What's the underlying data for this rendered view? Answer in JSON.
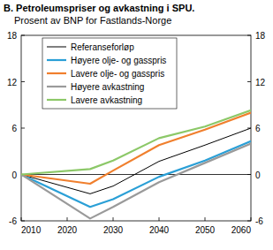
{
  "chart_data": {
    "type": "line",
    "title": "B.  Petroleumspriser og avkastning i SPU.",
    "subtitle": "Prosent av BNP for Fastlands-Norge",
    "x": [
      2010,
      2025,
      2030,
      2040,
      2050,
      2060
    ],
    "series": [
      {
        "name": "Referanseforløp",
        "color": "#000000",
        "values": [
          0,
          -2.5,
          -1.5,
          1.7,
          3.8,
          6.0
        ]
      },
      {
        "name": "Høyere olje- og gasspris",
        "color": "#2a9fd6",
        "values": [
          0,
          -4.2,
          -3.2,
          -0.3,
          1.8,
          4.3
        ]
      },
      {
        "name": "Lavere olje- og gasspris",
        "color": "#f07f2d",
        "values": [
          0,
          -1.2,
          0.5,
          3.8,
          5.8,
          8.0
        ]
      },
      {
        "name": "Høyere avkastning",
        "color": "#9a9a9a",
        "values": [
          0,
          -5.7,
          -4.2,
          -1.0,
          1.5,
          4.0
        ]
      },
      {
        "name": "Lavere avkastning",
        "color": "#8cc868",
        "values": [
          0,
          0.7,
          1.8,
          4.7,
          6.2,
          8.3
        ]
      }
    ],
    "xlim": [
      2010,
      2060
    ],
    "xticks": [
      2010,
      2020,
      2030,
      2040,
      2050,
      2060
    ],
    "ylim": [
      -6,
      18
    ],
    "yticks": [
      -6,
      0,
      6,
      12,
      18
    ],
    "y2lim": [
      -6,
      18
    ],
    "y2ticks": [
      -6,
      0,
      6,
      12,
      18
    ],
    "grid": false,
    "legend": "upper left"
  }
}
